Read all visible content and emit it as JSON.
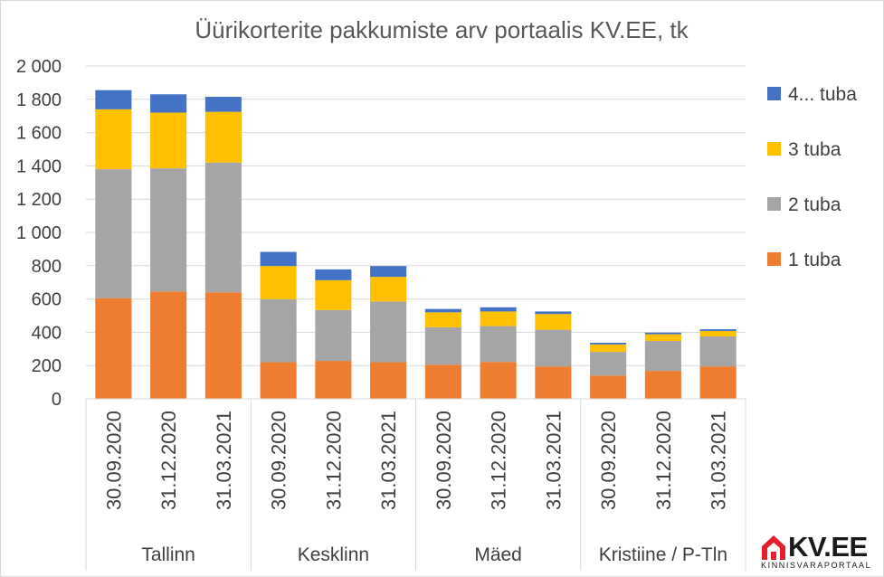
{
  "chart_data": {
    "type": "bar",
    "stacked": true,
    "title": "Üürikorterite pakkumiste arv portaalis KV.EE, tk",
    "ylim": [
      0,
      2000
    ],
    "yticks": [
      0,
      200,
      400,
      600,
      800,
      1000,
      1200,
      1400,
      1600,
      1800,
      2000
    ],
    "ytick_labels": [
      "0",
      "200",
      "400",
      "600",
      "800",
      "1 000",
      "1 200",
      "1 400",
      "1 600",
      "1 800",
      "2 000"
    ],
    "grid": true,
    "legend_position": "right",
    "groups": [
      {
        "name": "Tallinn",
        "categories": [
          "30.09.2020",
          "31.12.2020",
          "31.03.2021"
        ]
      },
      {
        "name": "Kesklinn",
        "categories": [
          "30.09.2020",
          "31.12.2020",
          "31.03.2021"
        ]
      },
      {
        "name": "Mäed",
        "categories": [
          "30.09.2020",
          "31.12.2020",
          "31.03.2021"
        ]
      },
      {
        "name": "Kristiine / P-Tln",
        "categories": [
          "30.09.2020",
          "31.12.2020",
          "31.03.2021"
        ]
      }
    ],
    "series": [
      {
        "name": "1 tuba",
        "color": "#ED7D31",
        "values": [
          605,
          645,
          640,
          220,
          228,
          220,
          205,
          222,
          195,
          140,
          168,
          195
        ]
      },
      {
        "name": "2 tuba",
        "color": "#A5A5A5",
        "values": [
          775,
          740,
          780,
          378,
          305,
          365,
          225,
          215,
          220,
          142,
          180,
          180
        ]
      },
      {
        "name": "3 tuba",
        "color": "#FFC000",
        "values": [
          360,
          335,
          305,
          200,
          180,
          148,
          90,
          88,
          95,
          45,
          40,
          33
        ]
      },
      {
        "name": "4... tuba",
        "color": "#4472C4",
        "values": [
          115,
          110,
          90,
          85,
          65,
          65,
          20,
          25,
          15,
          10,
          10,
          10
        ]
      }
    ],
    "legend_order": [
      "4... tuba",
      "3 tuba",
      "2 tuba",
      "1 tuba"
    ]
  },
  "logo": {
    "text": "KV.EE",
    "subtext": "KINNISVARAPORTAAL",
    "brand_color": "#E5202E"
  },
  "colors": {
    "axis": "#d9d9d9",
    "text": "#404040",
    "title": "#595959"
  }
}
